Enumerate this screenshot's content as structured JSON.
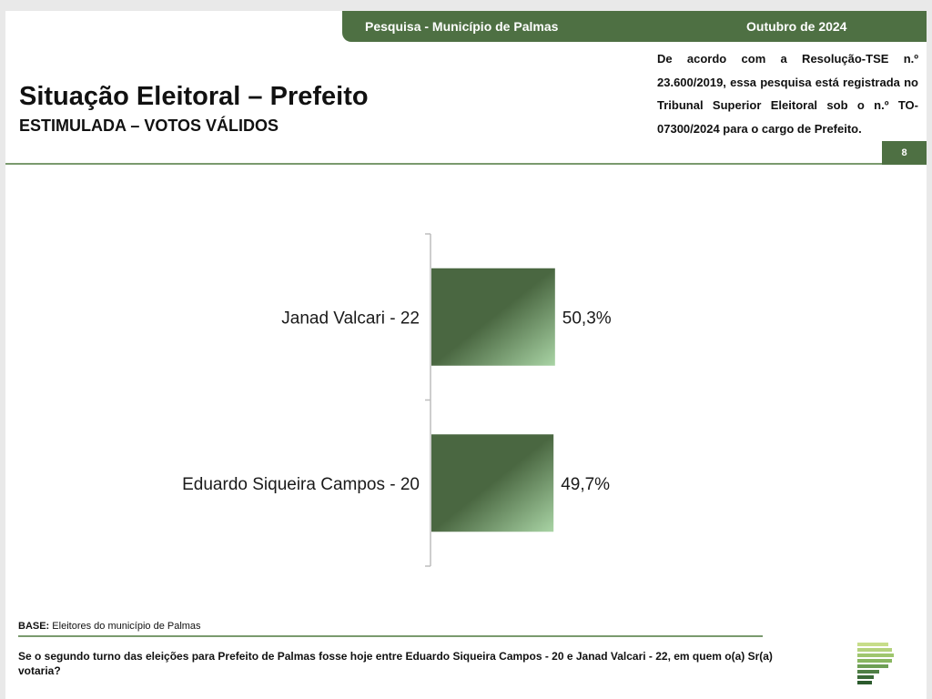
{
  "header": {
    "survey_label": "Pesquisa - Município de Palmas",
    "date_label": "Outubro de 2024",
    "title": "Situação Eleitoral – Prefeito",
    "subtitle": "ESTIMULADA – VOTOS VÁLIDOS",
    "registration_note": "De acordo com a Resolução-TSE n.º 23.600/2019, essa pesquisa está registrada no Tribunal Superior Eleitoral sob o n.º TO-07300/2024 para o cargo de Prefeito.",
    "page_number": "8"
  },
  "chart_data": {
    "type": "bar",
    "orientation": "horizontal",
    "categories": [
      "Janad Valcari - 22",
      "Eduardo Siqueira Campos - 20"
    ],
    "values": [
      50.3,
      49.7
    ],
    "value_labels": [
      "50,3%",
      "49,7%"
    ],
    "title": "",
    "xlabel": "",
    "ylabel": "",
    "xlim": [
      0,
      100
    ],
    "grid": false,
    "legend": "none",
    "bar_color_dark": "#4a6741",
    "bar_color_light": "#a9d4a5"
  },
  "footer": {
    "base_label": "BASE:",
    "base_text": "Eleitores do município de Palmas",
    "question": "Se o segundo turno das eleições para Prefeito de Palmas fosse hoje entre Eduardo Siqueira Campos - 20 e Janad Valcari - 22, em quem o(a) Sr(a) votaria?"
  },
  "colors": {
    "brand_green": "#4e7043",
    "rule_green": "#7a9a6e"
  }
}
